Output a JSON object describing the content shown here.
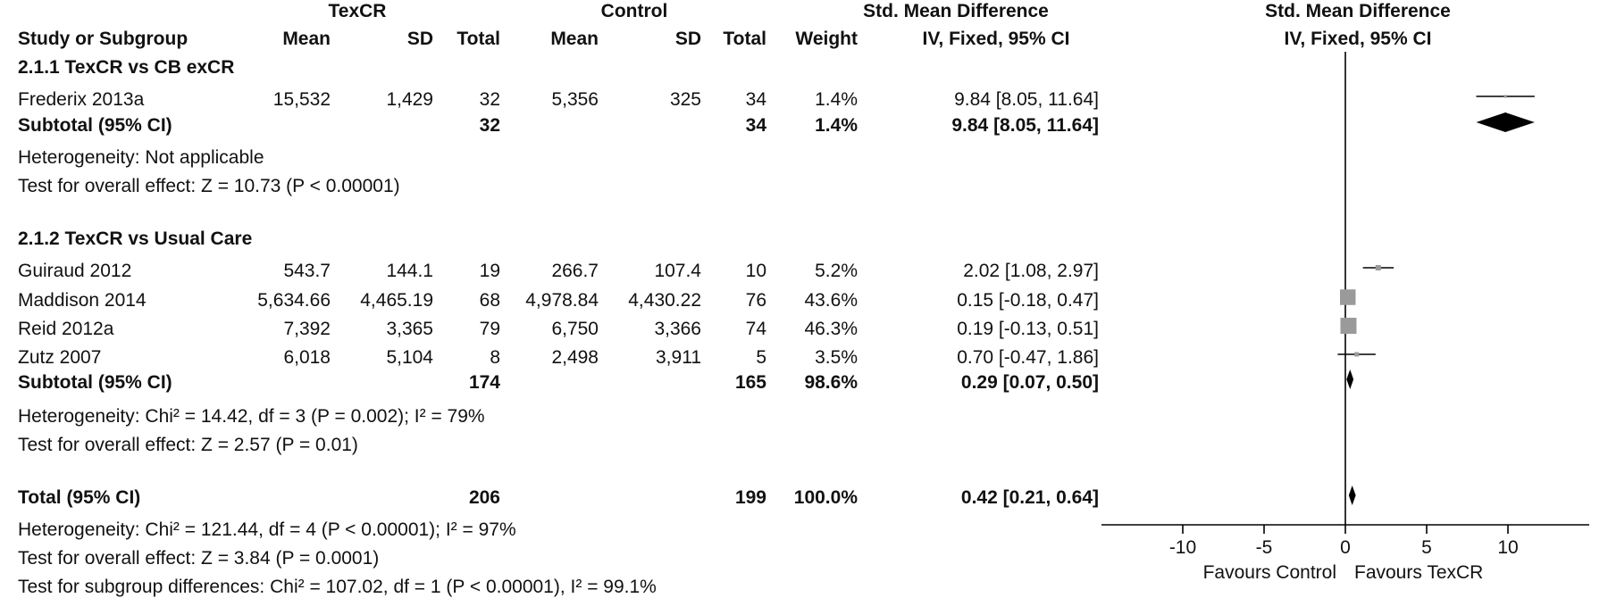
{
  "headers": {
    "group_texcr": "TexCR",
    "group_control": "Control",
    "smd_title": "Std. Mean Difference",
    "smd_subtitle": "IV, Fixed, 95% CI",
    "plot_title": "Std. Mean Difference",
    "plot_subtitle": "IV, Fixed, 95% CI",
    "study_col": "Study or Subgroup",
    "mean": "Mean",
    "sd": "SD",
    "total": "Total",
    "mean2": "Mean",
    "sd2": "SD",
    "total2": "Total",
    "weight": "Weight"
  },
  "subgroups": [
    {
      "title": "2.1.1 TexCR vs CB exCR",
      "studies": [
        {
          "name": "Frederix 2013a",
          "t_mean": "15,532",
          "t_sd": "1,429",
          "t_total": "32",
          "c_mean": "5,356",
          "c_sd": "325",
          "c_total": "34",
          "weight": "1.4%",
          "ci": "9.84 [8.05, 11.64]"
        }
      ],
      "subtotal": {
        "label": "Subtotal (95% CI)",
        "t_total": "32",
        "c_total": "34",
        "weight": "1.4%",
        "ci": "9.84 [8.05, 11.64]"
      },
      "heterogeneity": "Heterogeneity: Not applicable",
      "overall": "Test for overall effect: Z = 10.73 (P < 0.00001)"
    },
    {
      "title": "2.1.2 TexCR vs Usual Care",
      "studies": [
        {
          "name": "Guiraud 2012",
          "t_mean": "543.7",
          "t_sd": "144.1",
          "t_total": "19",
          "c_mean": "266.7",
          "c_sd": "107.4",
          "c_total": "10",
          "weight": "5.2%",
          "ci": "2.02 [1.08, 2.97]"
        },
        {
          "name": "Maddison 2014",
          "t_mean": "5,634.66",
          "t_sd": "4,465.19",
          "t_total": "68",
          "c_mean": "4,978.84",
          "c_sd": "4,430.22",
          "c_total": "76",
          "weight": "43.6%",
          "ci": "0.15 [-0.18, 0.47]"
        },
        {
          "name": "Reid 2012a",
          "t_mean": "7,392",
          "t_sd": "3,365",
          "t_total": "79",
          "c_mean": "6,750",
          "c_sd": "3,366",
          "c_total": "74",
          "weight": "46.3%",
          "ci": "0.19 [-0.13, 0.51]"
        },
        {
          "name": "Zutz 2007",
          "t_mean": "6,018",
          "t_sd": "5,104",
          "t_total": "8",
          "c_mean": "2,498",
          "c_sd": "3,911",
          "c_total": "5",
          "weight": "3.5%",
          "ci": "0.70 [-0.47, 1.86]"
        }
      ],
      "subtotal": {
        "label": "Subtotal (95% CI)",
        "t_total": "174",
        "c_total": "165",
        "weight": "98.6%",
        "ci": "0.29 [0.07, 0.50]"
      },
      "heterogeneity": "Heterogeneity: Chi² = 14.42, df = 3 (P = 0.002); I² = 79%",
      "overall": "Test for overall effect: Z = 2.57 (P = 0.01)"
    }
  ],
  "total": {
    "label": "Total (95% CI)",
    "t_total": "206",
    "c_total": "199",
    "weight": "100.0%",
    "ci": "0.42 [0.21, 0.64]",
    "heterogeneity": "Heterogeneity: Chi² = 121.44, df = 4 (P < 0.00001); I² = 97%",
    "overall": "Test for overall effect: Z = 3.84 (P = 0.0001)",
    "subgroup_diff": "Test for subgroup differences: Chi² = 107.02, df = 1 (P < 0.00001), I² = 99.1%"
  },
  "chart_data": {
    "type": "forest",
    "xlim": [
      -15,
      15
    ],
    "ticks": [
      -10,
      -5,
      0,
      5,
      10
    ],
    "tick_labels": [
      "-10",
      "-5",
      "0",
      "5",
      "10"
    ],
    "favours_left": "Favours Control",
    "favours_right": "Favours TexCR",
    "studies": [
      {
        "name": "Frederix 2013a",
        "est": 9.84,
        "lo": 8.05,
        "hi": 11.64,
        "weight": 1.4
      },
      {
        "name": "Guiraud 2012",
        "est": 2.02,
        "lo": 1.08,
        "hi": 2.97,
        "weight": 5.2
      },
      {
        "name": "Maddison 2014",
        "est": 0.15,
        "lo": -0.18,
        "hi": 0.47,
        "weight": 43.6
      },
      {
        "name": "Reid 2012a",
        "est": 0.19,
        "lo": -0.13,
        "hi": 0.51,
        "weight": 46.3
      },
      {
        "name": "Zutz 2007",
        "est": 0.7,
        "lo": -0.47,
        "hi": 1.86,
        "weight": 3.5
      }
    ],
    "diamonds": [
      {
        "name": "Subtotal 2.1.1",
        "est": 9.84,
        "lo": 8.05,
        "hi": 11.64
      },
      {
        "name": "Subtotal 2.1.2",
        "est": 0.29,
        "lo": 0.07,
        "hi": 0.5
      },
      {
        "name": "Total",
        "est": 0.42,
        "lo": 0.21,
        "hi": 0.64
      }
    ]
  }
}
